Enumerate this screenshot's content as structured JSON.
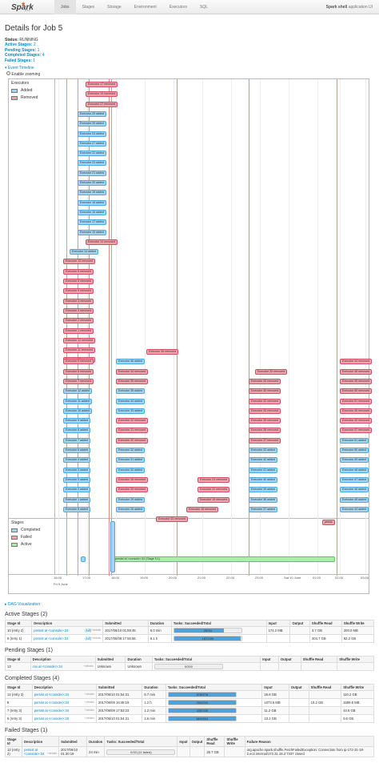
{
  "nav": {
    "logo": "Spark",
    "version": "2.1.1",
    "tabs": [
      "Jobs",
      "Stages",
      "Storage",
      "Environment",
      "Executors",
      "SQL"
    ],
    "active": 0,
    "brand_bold": "Spark shell",
    "brand_rest": " application UI"
  },
  "title": "Details for Job 5",
  "summary": {
    "status_label": "Status:",
    "status": "RUNNING",
    "active_label": "Active Stages:",
    "active": "2",
    "pending_label": "Pending Stages:",
    "pending": "1",
    "completed_label": "Completed Stages:",
    "completed": "4",
    "failed_label": "Failed Stages:",
    "failed": "1"
  },
  "timeline": {
    "title": "Event Timeline",
    "zoom": "Enable zooming",
    "executors_label": "Executors",
    "added": "Added",
    "removed": "Removed",
    "stages_label": "Stages",
    "completed": "Completed",
    "failed": "Failed",
    "active": "Active",
    "events": [
      {
        "t": "r",
        "label": "Executor 17 removed",
        "col": 1
      },
      {
        "t": "r",
        "label": "Executor 15 removed",
        "col": 1
      },
      {
        "t": "r",
        "label": "Executor 27 removed",
        "col": 1
      },
      {
        "t": "a",
        "label": "Executor 25 added",
        "col": 0
      },
      {
        "t": "a",
        "label": "Executor 26 added",
        "col": 0
      },
      {
        "t": "a",
        "label": "Executor 24 added",
        "col": 0
      },
      {
        "t": "a",
        "label": "Executor 27 added",
        "col": 0
      },
      {
        "t": "a",
        "label": "Executor 22 added",
        "col": 0
      },
      {
        "t": "a",
        "label": "Executor 23 added",
        "col": 0
      },
      {
        "t": "a",
        "label": "Executor 21 added",
        "col": 0
      },
      {
        "t": "a",
        "label": "Executor 20 added",
        "col": 0
      },
      {
        "t": "a",
        "label": "Executor 19 added",
        "col": 0
      },
      {
        "t": "a",
        "label": "Executor 18 added",
        "col": 0
      },
      {
        "t": "a",
        "label": "Executor 16 added",
        "col": 0
      },
      {
        "t": "a",
        "label": "Executor 17 added",
        "col": 0
      },
      {
        "t": "a",
        "label": "Executor 15 added",
        "col": 0
      },
      {
        "t": "r",
        "label": "Executor 14 removed",
        "col": 1
      },
      {
        "t": "a",
        "label": "Executor 14 added",
        "col": 2
      },
      {
        "t": "r",
        "label": "Executor 13 removed",
        "col": 3
      },
      {
        "t": "r",
        "label": "Executor 8 removed",
        "col": 3
      },
      {
        "t": "r",
        "label": "Executor 5 removed",
        "col": 3
      },
      {
        "t": "r",
        "label": "Executor 9 removed",
        "col": 3
      },
      {
        "t": "r",
        "label": "Executor 3 removed",
        "col": 3
      },
      {
        "t": "r",
        "label": "Executor 4 removed",
        "col": 3
      },
      {
        "t": "r",
        "label": "Executor 2 removed",
        "col": 3
      },
      {
        "t": "r",
        "label": "Executor 1 removed",
        "col": 3
      },
      {
        "t": "r",
        "label": "Executor 12 removed",
        "col": 3
      },
      {
        "t": "r",
        "label": "Executor 11 removed",
        "col": 3
      },
      {
        "t": "r",
        "label": "Executor 10 removed",
        "col": 3
      }
    ],
    "band": [
      {
        "c": [
          [
            "r",
            "Executor 36 removed",
            172
          ]
        ]
      },
      {
        "c": [
          [
            "r",
            "Executor 6 removed",
            68
          ],
          [
            "a",
            "Executor 36 added",
            134
          ],
          [
            "r",
            "Executor 44 removed",
            414
          ]
        ]
      },
      {
        "c": [
          [
            "r",
            "Executor 8 removed",
            68
          ],
          [
            "r",
            "Executor 34 removed",
            134
          ],
          [
            "r",
            "Executor 25 removed",
            308
          ],
          [
            "r",
            "Executor 48 removed",
            414
          ]
        ]
      },
      {
        "c": [
          [
            "r",
            "Executor 7 removed",
            68
          ],
          [
            "r",
            "Executor 35 removed",
            134
          ],
          [
            "r",
            "Executor 45 removed",
            300
          ],
          [
            "r",
            "Executor 45 removed",
            414
          ]
        ]
      },
      {
        "c": [
          [
            "a",
            "Executor 12 added",
            68
          ],
          [
            "a",
            "Executor 35 added",
            134
          ],
          [
            "r",
            "Executor 40 removed",
            300
          ],
          [
            "r",
            "Executor 50 removed",
            414
          ]
        ]
      },
      {
        "c": [
          [
            "a",
            "Executor 11 added",
            68
          ],
          [
            "a",
            "Executor 34 added",
            134
          ],
          [
            "r",
            "Executor 42 removed",
            300
          ],
          [
            "r",
            "Executor 51 removed",
            414
          ]
        ]
      },
      {
        "c": [
          [
            "a",
            "Executor 10 added",
            68
          ],
          [
            "a",
            "Executor 33 added",
            134
          ],
          [
            "r",
            "Executor 43 removed",
            300
          ],
          [
            "r",
            "Executor 46 removed",
            414
          ]
        ]
      },
      {
        "c": [
          [
            "a",
            "Executor 9 added",
            68
          ],
          [
            "r",
            "Executor 32 removed",
            134
          ],
          [
            "r",
            "Executor 39 removed",
            300
          ],
          [
            "r",
            "Executor 49 removed",
            414
          ]
        ]
      },
      {
        "c": [
          [
            "a",
            "Executor 8 added",
            68
          ],
          [
            "r",
            "Executor 31 removed",
            134
          ],
          [
            "r",
            "Executor 38 removed",
            300
          ],
          [
            "r",
            "Executor 47 removed",
            414
          ]
        ]
      },
      {
        "c": [
          [
            "a",
            "Executor 7 added",
            68
          ],
          [
            "r",
            "Executor 30 removed",
            134
          ],
          [
            "r",
            "Executor 37 removed",
            300
          ],
          [
            "a",
            "Executor 51 added",
            414
          ]
        ]
      },
      {
        "c": [
          [
            "a",
            "Executor 6 added",
            68
          ],
          [
            "a",
            "Executor 32 added",
            134
          ],
          [
            "a",
            "Executor 43 added",
            300
          ],
          [
            "a",
            "Executor 50 added",
            414
          ]
        ]
      },
      {
        "c": [
          [
            "a",
            "Executor 4 added",
            68
          ],
          [
            "a",
            "Executor 31 added",
            134
          ],
          [
            "a",
            "Executor 42 added",
            300
          ],
          [
            "a",
            "Executor 49 added",
            414
          ]
        ]
      },
      {
        "c": [
          [
            "a",
            "Executor 3 added",
            68
          ],
          [
            "a",
            "Executor 30 added",
            134
          ],
          [
            "a",
            "Executor 41 added",
            300
          ],
          [
            "a",
            "Executor 48 added",
            414
          ]
        ]
      },
      {
        "c": [
          [
            "a",
            "Executor 5 added",
            68
          ],
          [
            "r",
            "Executor 28 removed",
            134
          ],
          [
            "r",
            "Executor 23 removed",
            236
          ],
          [
            "a",
            "Executor 40 added",
            300
          ],
          [
            "a",
            "Executor 47 added",
            414
          ]
        ]
      },
      {
        "c": [
          [
            "a",
            "Executor 2 added",
            68
          ],
          [
            "r",
            "Executor 29 removed",
            134
          ],
          [
            "r",
            "Executor 22 removed",
            236
          ],
          [
            "a",
            "Executor 39 added",
            300
          ],
          [
            "a",
            "Executor 46 added",
            414
          ]
        ]
      },
      {
        "c": [
          [
            "a",
            "Executor 1 added",
            68
          ],
          [
            "a",
            "Executor 29 added",
            134
          ],
          [
            "r",
            "Executor 19 removed",
            236
          ],
          [
            "a",
            "Executor 38 added",
            300
          ],
          [
            "a",
            "Executor 45 added",
            414
          ]
        ]
      },
      {
        "c": [
          [
            "a",
            "Executor 8 added",
            68
          ],
          [
            "a",
            "Executor 28 added",
            134
          ],
          [
            "r",
            "Executor 18 removed",
            222
          ],
          [
            "a",
            "Executor 37 added",
            300
          ],
          [
            "a",
            "Executor 44 added",
            414
          ]
        ]
      },
      {
        "c": [
          [
            "r",
            "Executor 33 removed",
            184
          ]
        ]
      }
    ],
    "stage_active_label": "persist at <console>:34 (Stage 5.1)",
    "stage_persist": "persis",
    "axis": [
      "16:00",
      "17:00",
      "18:00",
      "19:00",
      "20:00",
      "21:00",
      "22:00",
      "23:00",
      "Sat 10 June",
      "01:00",
      "02:00",
      "03:00"
    ],
    "date_left": "Fri 9 June",
    "date_mid": "Sat 10 June"
  },
  "dag": "DAG Visualization",
  "active_stages": {
    "title": "Active Stages (2)",
    "headers": [
      "Stage Id",
      "Description",
      "Submitted",
      "Duration",
      "Tasks: Succeeded/Total",
      "Input",
      "Output",
      "Shuffle Read",
      "Shuffle Write"
    ],
    "rows": [
      {
        "id": "10 (retry 2)",
        "desc": "persist at <console>:34",
        "kill": "(kill)",
        "sub": "2017/06/10 01:59:45",
        "dur": "6.0 min",
        "tasks": "25/34",
        "frac": 0.735,
        "in": "174.2 MB",
        "out": "",
        "sr": "3.7 GB",
        "sw": "200.0 MB"
      },
      {
        "id": "9 (retry 1)",
        "desc": "persist at <console>:34",
        "kill": "(kill)",
        "sub": "2017/06/09 17:56:56",
        "dur": "8.1 h",
        "tasks": "187/189",
        "frac": 0.99,
        "in": "",
        "out": "",
        "sr": "404.7 GB",
        "sw": "62.2 GB"
      }
    ]
  },
  "pending_stages": {
    "title": "Pending Stages (1)",
    "headers": [
      "Stage Id",
      "Description",
      "Submitted",
      "Duration",
      "Tasks: Succeeded/Total",
      "Input",
      "Output",
      "Shuffle Read",
      "Shuffle Write"
    ],
    "rows": [
      {
        "id": "13",
        "desc": "csv at <console>:34",
        "sub": "Unknown",
        "dur": "Unknown",
        "tasks": "0/200",
        "frac": 0,
        "in": "",
        "out": "",
        "sr": "",
        "sw": ""
      }
    ]
  },
  "completed_stages": {
    "title": "Completed Stages (4)",
    "headers": [
      "Stage Id",
      "Description",
      "Submitted",
      "Duration",
      "Tasks: Succeeded/Total",
      "Input",
      "Output",
      "Shuffle Read",
      "Shuffle Write"
    ],
    "rows": [
      {
        "id": "12 (retry 3)",
        "desc": "persist at <console>:34",
        "sub": "2017/06/10 01:54:31",
        "dur": "5.7 min",
        "tasks": "578/578",
        "frac": 1,
        "in": "26.8 GB",
        "out": "",
        "sr": "",
        "sw": "110.2 GB"
      },
      {
        "id": "8",
        "desc": "persist at <console>:34",
        "sub": "2017/06/09 16:48:19",
        "dur": "1.2 h",
        "tasks": "200/200",
        "frac": 1,
        "in": "1073.5 MB",
        "out": "",
        "sr": "19.2 GB",
        "sw": "1599.6 MB"
      },
      {
        "id": "7 (retry 3)",
        "desc": "persist at <console>:34",
        "sub": "2017/06/09 17:53:23",
        "dur": "1.2 min",
        "tasks": "335/335",
        "frac": 1,
        "in": "11.2 GB",
        "out": "",
        "sr": "",
        "sw": "44.6 GB"
      },
      {
        "id": "6 (retry 3)",
        "desc": "persist at <console>:28",
        "sub": "2017/06/10 01:54:31",
        "dur": "2.6 min",
        "tasks": "664/664",
        "frac": 1,
        "in": "23.2 GB",
        "out": "",
        "sr": "",
        "sw": "8.6 GB"
      }
    ]
  },
  "failed_stages": {
    "title": "Failed Stages (1)",
    "headers": [
      "Stage Id",
      "Description",
      "Submitted",
      "Duration",
      "Tasks: Succeeded/Total",
      "Input",
      "Output",
      "Shuffle Read",
      "Shuffle Write",
      "Failure Reason"
    ],
    "rows": [
      {
        "id": "12 (retry 2)",
        "desc": "persist at <console>:34",
        "sub": "2017/06/10 01:30:19",
        "dur": "24 min",
        "tasks": "0/33 (11 failed)",
        "frac": 0,
        "in": "",
        "out": "",
        "sr": "25.7 GB",
        "sw": "",
        "reason": "org.apache.spark.shuffle.FetchFailedException: Connection from ip-172-31-18-2.ec2.internal/172.31.18.2:7337 closed"
      }
    ]
  },
  "details": "+details",
  "colors": {
    "added": "#a3d6f4",
    "removed": "#f4a3ae",
    "active": "#a8f0a8",
    "bar": "#4aa3df"
  }
}
